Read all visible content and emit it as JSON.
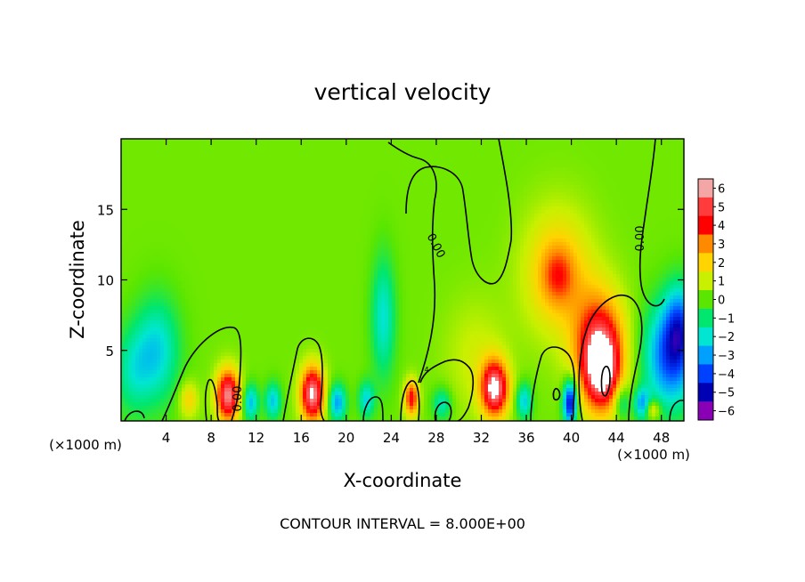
{
  "chart_data": {
    "type": "heatmap",
    "title": "vertical velocity",
    "xlabel": "X-coordinate",
    "ylabel": "Z-coordinate",
    "x_unit_left": "(×1000 m)",
    "x_unit_right": "(×1000 m)",
    "xlim": [
      0,
      50
    ],
    "ylim": [
      0,
      20
    ],
    "x_ticks": [
      4,
      8,
      12,
      16,
      20,
      24,
      28,
      32,
      36,
      40,
      44,
      48
    ],
    "y_ticks": [
      5,
      10,
      15
    ],
    "colorbar": {
      "ticks": [
        6,
        5,
        4,
        3,
        2,
        1,
        0,
        -1,
        -2,
        -3,
        -4,
        -5,
        -6
      ],
      "tick_labels": [
        "6",
        "5",
        "4",
        "3",
        "2",
        "1",
        "0",
        "−1",
        "−2",
        "−3",
        "−4",
        "−5",
        "−6"
      ],
      "colors": [
        "#f4a5a5",
        "#ff3b3b",
        "#ff0000",
        "#ff8a00",
        "#ffd400",
        "#c8f000",
        "#5ae600",
        "#00e66e",
        "#00e6d2",
        "#00a0ff",
        "#0040ff",
        "#0000b4",
        "#8a00b4"
      ]
    },
    "background_value": 0.2,
    "blobs": [
      {
        "x": 3.2,
        "z": 5,
        "sx": 1.4,
        "sz": 2.6,
        "w": -2.4
      },
      {
        "x": 1.0,
        "z": 3.5,
        "sx": 1.2,
        "sz": 2.2,
        "w": -1.6
      },
      {
        "x": 6.0,
        "z": 1.5,
        "sx": 0.6,
        "sz": 0.9,
        "w": 1.8
      },
      {
        "x": 9.5,
        "z": 1.8,
        "sx": 0.75,
        "sz": 1.3,
        "w": 5.6
      },
      {
        "x": 11.5,
        "z": 1.3,
        "sx": 0.5,
        "sz": 0.9,
        "w": -2.8
      },
      {
        "x": 13.5,
        "z": 1.4,
        "sx": 0.5,
        "sz": 0.9,
        "w": -2.6
      },
      {
        "x": 17.0,
        "z": 1.9,
        "sx": 0.75,
        "sz": 1.4,
        "w": 5.8
      },
      {
        "x": 19.2,
        "z": 1.3,
        "sx": 0.55,
        "sz": 0.9,
        "w": -3.2
      },
      {
        "x": 21.8,
        "z": 1.5,
        "sx": 0.5,
        "sz": 0.9,
        "w": -2.4
      },
      {
        "x": 23.3,
        "z": 7.3,
        "sx": 0.75,
        "sz": 3.0,
        "w": -2.2
      },
      {
        "x": 25.8,
        "z": 1.6,
        "sx": 0.45,
        "sz": 0.9,
        "w": 4.0
      },
      {
        "x": 28.5,
        "z": 1.2,
        "sx": 0.6,
        "sz": 0.8,
        "w": -2.0
      },
      {
        "x": 31.5,
        "z": 4.5,
        "sx": 2.0,
        "sz": 3.0,
        "w": 0.9
      },
      {
        "x": 33.2,
        "z": 2.3,
        "sx": 0.85,
        "sz": 1.4,
        "w": 5.7
      },
      {
        "x": 35.8,
        "z": 1.4,
        "sx": 0.5,
        "sz": 0.9,
        "w": -2.6
      },
      {
        "x": 38.8,
        "z": 10.5,
        "sx": 2.2,
        "sz": 3.2,
        "w": 2.2
      },
      {
        "x": 38.8,
        "z": 10.3,
        "sx": 1.0,
        "sz": 1.4,
        "w": 1.6
      },
      {
        "x": 39.9,
        "z": 1.3,
        "sx": 0.45,
        "sz": 1.1,
        "w": -5.5
      },
      {
        "x": 42.5,
        "z": 5.0,
        "sx": 1.6,
        "sz": 2.8,
        "w": 4.8
      },
      {
        "x": 42.7,
        "z": 3.5,
        "sx": 1.0,
        "sz": 1.8,
        "w": 3.5
      },
      {
        "x": 44.5,
        "z": 1.3,
        "sx": 0.5,
        "sz": 0.9,
        "w": -2.0
      },
      {
        "x": 46.3,
        "z": 1.2,
        "sx": 0.5,
        "sz": 0.8,
        "w": -3.0
      },
      {
        "x": 47.2,
        "z": 0.8,
        "sx": 0.5,
        "sz": 0.5,
        "w": 2.2
      },
      {
        "x": 48.8,
        "z": 4.6,
        "sx": 1.6,
        "sz": 2.6,
        "w": -4.2
      },
      {
        "x": 49.6,
        "z": 7.0,
        "sx": 0.9,
        "sz": 2.0,
        "w": -2.5
      }
    ],
    "contour_label": "0.00",
    "contour_label_small": "4",
    "contour_interval_text": "CONTOUR INTERVAL = 8.000E+00"
  }
}
